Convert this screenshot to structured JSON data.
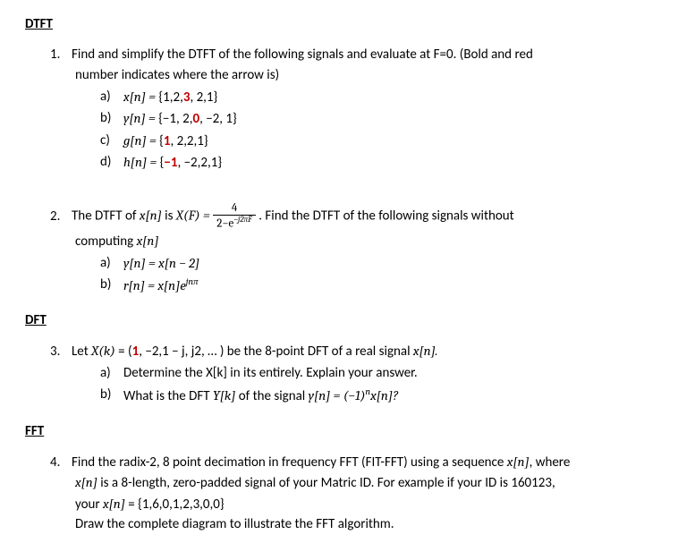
{
  "sections": {
    "dtft": {
      "heading": "DTFT"
    },
    "dft": {
      "heading": "DFT"
    },
    "fft": {
      "heading": "FFT"
    }
  },
  "q1": {
    "num": "1.",
    "text_line1": "Find and simplify the DTFT of the following signals and evaluate at F=0. (Bold and red",
    "text_line2": "number indicates where the arrow is)",
    "a": {
      "lbl": "a)",
      "lhs": "x[n] = ",
      "seq_open": "{1,2,",
      "bold": "3",
      "seq_close": ", 2,1}"
    },
    "b": {
      "lbl": "b)",
      "lhs": "y[n] = ",
      "seq_open": "{−1, 2,",
      "bold": "0",
      "seq_close": ", −2, 1}"
    },
    "c": {
      "lbl": "c)",
      "lhs": "g[n] = ",
      "seq_open": "{",
      "bold": "1",
      "seq_close": ", 2,2,1}"
    },
    "d": {
      "lbl": "d)",
      "lhs": "h[n] = ",
      "seq_open": "{",
      "bold": "−1",
      "seq_close": ", −2,2,1}"
    }
  },
  "q2": {
    "num": "2.",
    "lead_before": "The DTFT of ",
    "xn": "x[n]",
    "is": " is ",
    "XF": "X(F) = ",
    "frac_num": "4",
    "frac_den_a": "2−e",
    "frac_den_exp": "−j2πF",
    "lead_after": " . Find the DTFT of the following signals without",
    "line2": "computing ",
    "xn2": "x[n]",
    "a": {
      "lbl": "a)",
      "text": "y[n] = x[n − 2]"
    },
    "b": {
      "lbl": "b)",
      "text_a": "r[n] = x[n]e",
      "exp": "jnπ"
    }
  },
  "q3": {
    "num": "3.",
    "lead_a": "Let ",
    "Xk": "X(k)",
    "eq": " = ",
    "open": "(",
    "bold1": "1",
    "rest": ", −2,1 − j, j2, … )",
    "tail": " be the 8-point DFT of a real signal ",
    "xn": "x[n].",
    "a": {
      "lbl": "a)",
      "text": "Determine the X[k] in its entirely. Explain your answer."
    },
    "b": {
      "lbl": "b)",
      "pre": "What is the DFT ",
      "Yk": "Y[k]",
      "mid": " of the signal ",
      "eqn_a": "y[n] = (−1)",
      "exp": "n",
      "eqn_b": "x[n]?"
    }
  },
  "q4": {
    "num": "4.",
    "l1a": "Find the radix-2, 8 point decimation in frequency FFT (FIT-FFT) using a sequence ",
    "xn": "x[n]",
    "l1b": ", where",
    "l2a": "x[n]",
    "l2b": " is a 8-length, zero-padded signal of your Matric ID. For example if your ID is 160123,",
    "l3a": "your ",
    "l3b": " = {1,6,0,1,2,3,0,0}",
    "l4": "Draw the complete diagram to illustrate the FFT algorithm."
  },
  "colors": {
    "red": "#c00000",
    "text": "#000000",
    "bg": "#ffffff"
  },
  "typography": {
    "base_fontsize_pt": 11,
    "heading_weight": "bold"
  }
}
